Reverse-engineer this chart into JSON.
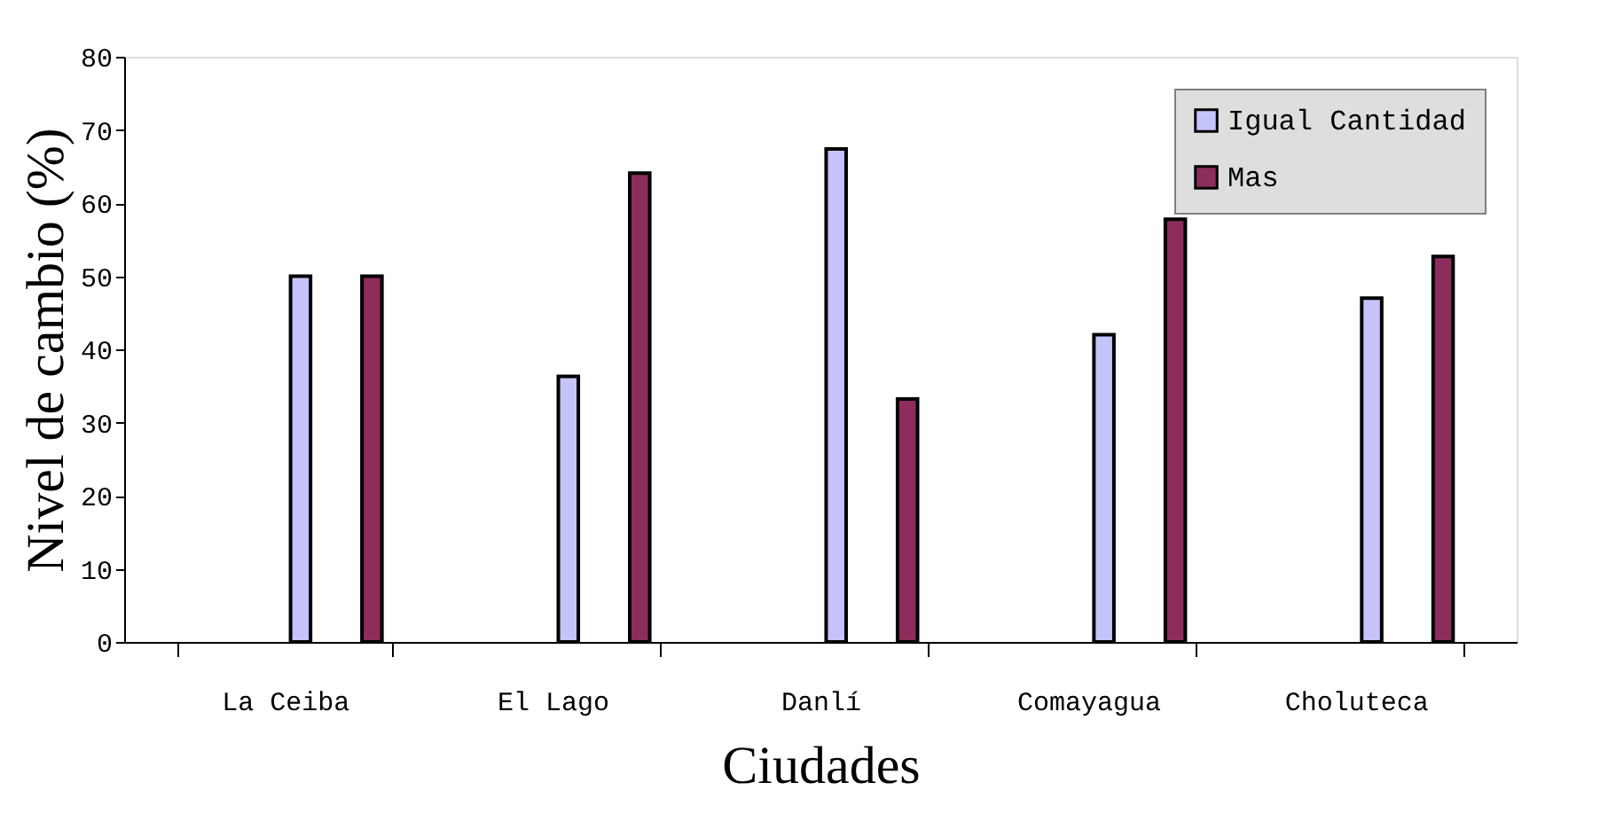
{
  "chart_data": {
    "type": "bar",
    "xlabel": "Ciudades",
    "ylabel": "Nivel de cambio (%)",
    "categories": [
      "La Ceiba",
      "El Lago",
      "Danlí",
      "Comayagua",
      "Choluteca"
    ],
    "series": [
      {
        "name": "Igual Cantidad",
        "color": "#c4c4fa",
        "values": [
          50,
          36.3,
          67.4,
          42,
          47
        ]
      },
      {
        "name": "Mas",
        "color": "#8c2d5c",
        "values": [
          50,
          64.1,
          33.2,
          57.8,
          52.7
        ]
      }
    ],
    "ylim": [
      0,
      80
    ],
    "yticks": [
      0,
      10,
      20,
      30,
      40,
      50,
      60,
      70,
      80
    ],
    "grid": false,
    "legend": "top right"
  }
}
